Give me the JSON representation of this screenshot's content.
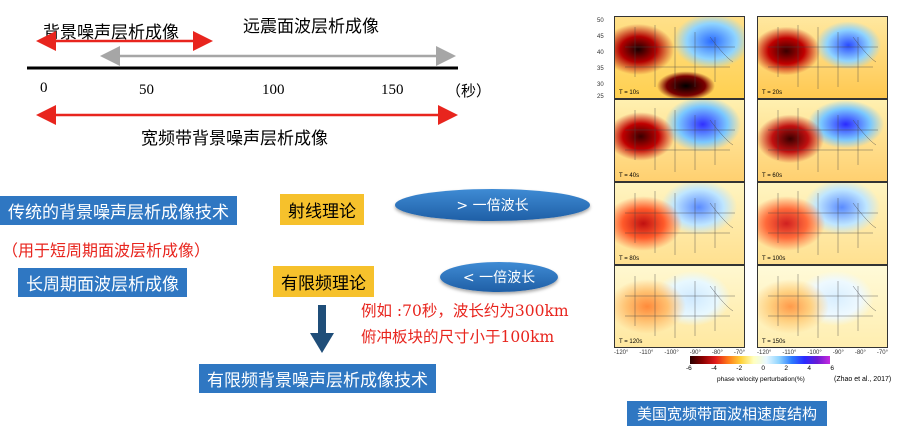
{
  "timeline": {
    "bg_noise_label": "背景噪声层析成像",
    "teleseismic_label": "远震面波层析成像",
    "broadband_label": "宽频带背景噪声层析成像",
    "ticks": [
      "0",
      "50",
      "100",
      "150",
      "（秒）"
    ]
  },
  "left": {
    "traditional_box": "传统的背景噪声层析成像技术",
    "short_period_note": "（用于短周期面波层析成像）",
    "long_period_box": "长周期面波层析成像",
    "ray_theory_box": "射线理论",
    "finite_freq_box": "有限频理论",
    "gt_wavelength": "> 一倍波长",
    "lt_wavelength": "< 一倍波长",
    "example_line1": "例如 :70秒，波长约为300km",
    "example_line2": "俯冲板块的尺寸小于100km",
    "result_box": "有限频背景噪声层析成像技术"
  },
  "maps": {
    "panels": [
      {
        "label": "T = 10s"
      },
      {
        "label": "T = 20s"
      },
      {
        "label": "T = 40s"
      },
      {
        "label": "T = 60s"
      },
      {
        "label": "T = 80s"
      },
      {
        "label": "T = 100s"
      },
      {
        "label": "T = 120s"
      },
      {
        "label": "T = 150s"
      }
    ],
    "lat_ticks": [
      "50",
      "45",
      "40",
      "35",
      "30",
      "25"
    ],
    "lon_ticks_left": [
      "-120°",
      "-110°",
      "-100°",
      "-90°",
      "-80°",
      "-70°"
    ],
    "lon_ticks_right": [
      "-120°",
      "-110°",
      "-100°",
      "-90°",
      "-80°",
      "-70°"
    ],
    "colorbar_ticks": [
      "-6",
      "-4",
      "-2",
      "0",
      "2",
      "4",
      "6"
    ],
    "colorbar_label": "phase velocity perturbation(%)",
    "citation": "(Zhao et al., 2017)",
    "caption": "美国宽频带面波相速度结构"
  },
  "colors": {
    "red": "#e8251e",
    "gray_arrow": "#a6a6a6",
    "blue_box": "#2f77c2",
    "orange_box": "#f6c12c",
    "dark_arrow": "#1f4e79"
  }
}
